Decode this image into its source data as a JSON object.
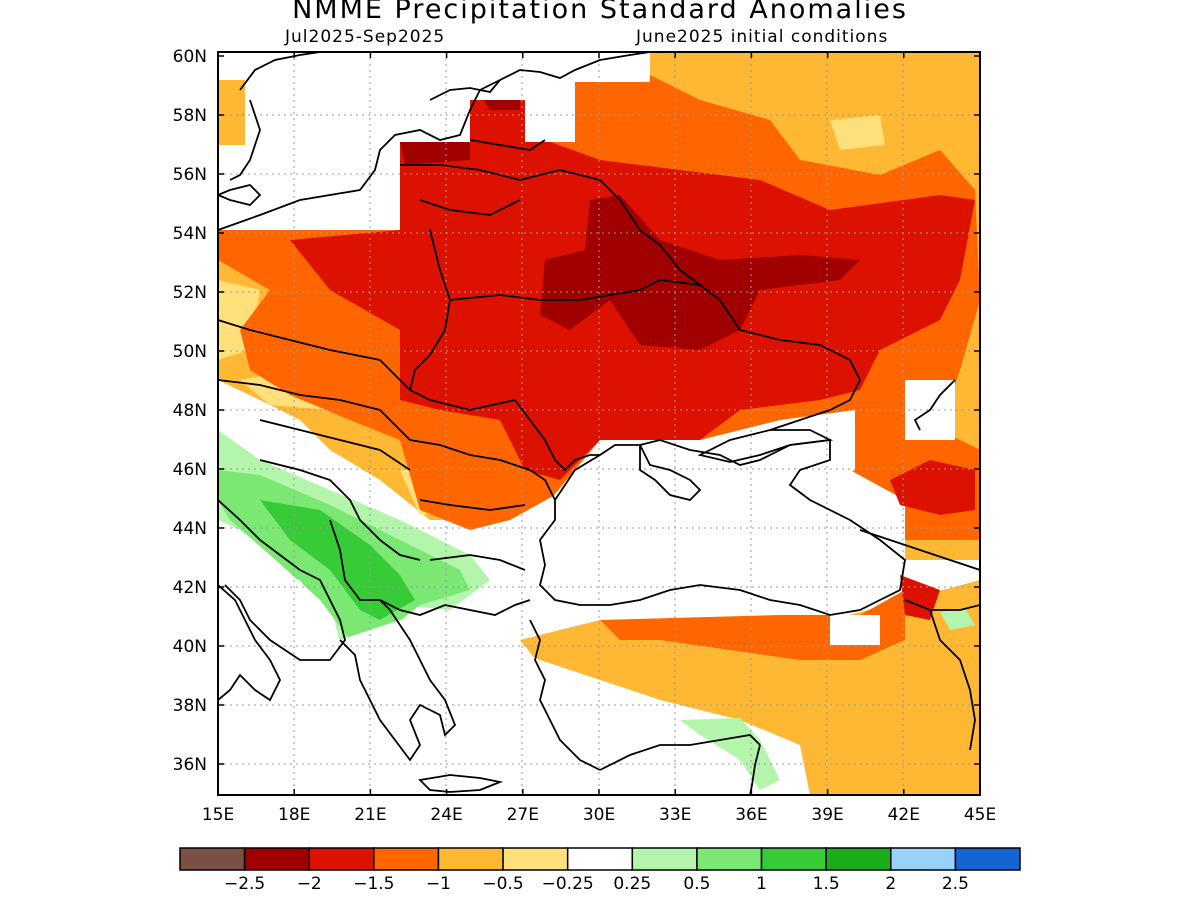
{
  "title": "NMME Precipitation Standard Anomalies",
  "period": "Jul2025-Sep2025",
  "init": "June2025 initial conditions",
  "lat_labels": [
    "60N",
    "58N",
    "56N",
    "54N",
    "52N",
    "50N",
    "48N",
    "46N",
    "44N",
    "42N",
    "40N",
    "38N",
    "36N"
  ],
  "lon_labels": [
    "15E",
    "18E",
    "21E",
    "24E",
    "27E",
    "30E",
    "33E",
    "36E",
    "39E",
    "42E",
    "45E"
  ],
  "colorbar": {
    "colors": [
      "#7a4f44",
      "#a00000",
      "#dd1100",
      "#ff6600",
      "#ffb833",
      "#ffe07a",
      "#ffffff",
      "#b3f5aa",
      "#7be873",
      "#37cc37",
      "#1aad1a",
      "#96d2fa",
      "#1464d2"
    ],
    "labels": [
      "-2.5",
      "-2",
      "-1.5",
      "-1",
      "-0.5",
      "-0.25",
      "0.25",
      "0.5",
      "1",
      "1.5",
      "2",
      "2.5"
    ]
  },
  "palette": {
    "dark_red": "#a00000",
    "red": "#dd1100",
    "dark_orange": "#ff6600",
    "orange": "#ffb833",
    "light_orange": "#ffe07a",
    "light_green": "#b3f5aa",
    "green": "#7be873",
    "mid_green": "#37cc37",
    "dark_green": "#1aad1a"
  }
}
